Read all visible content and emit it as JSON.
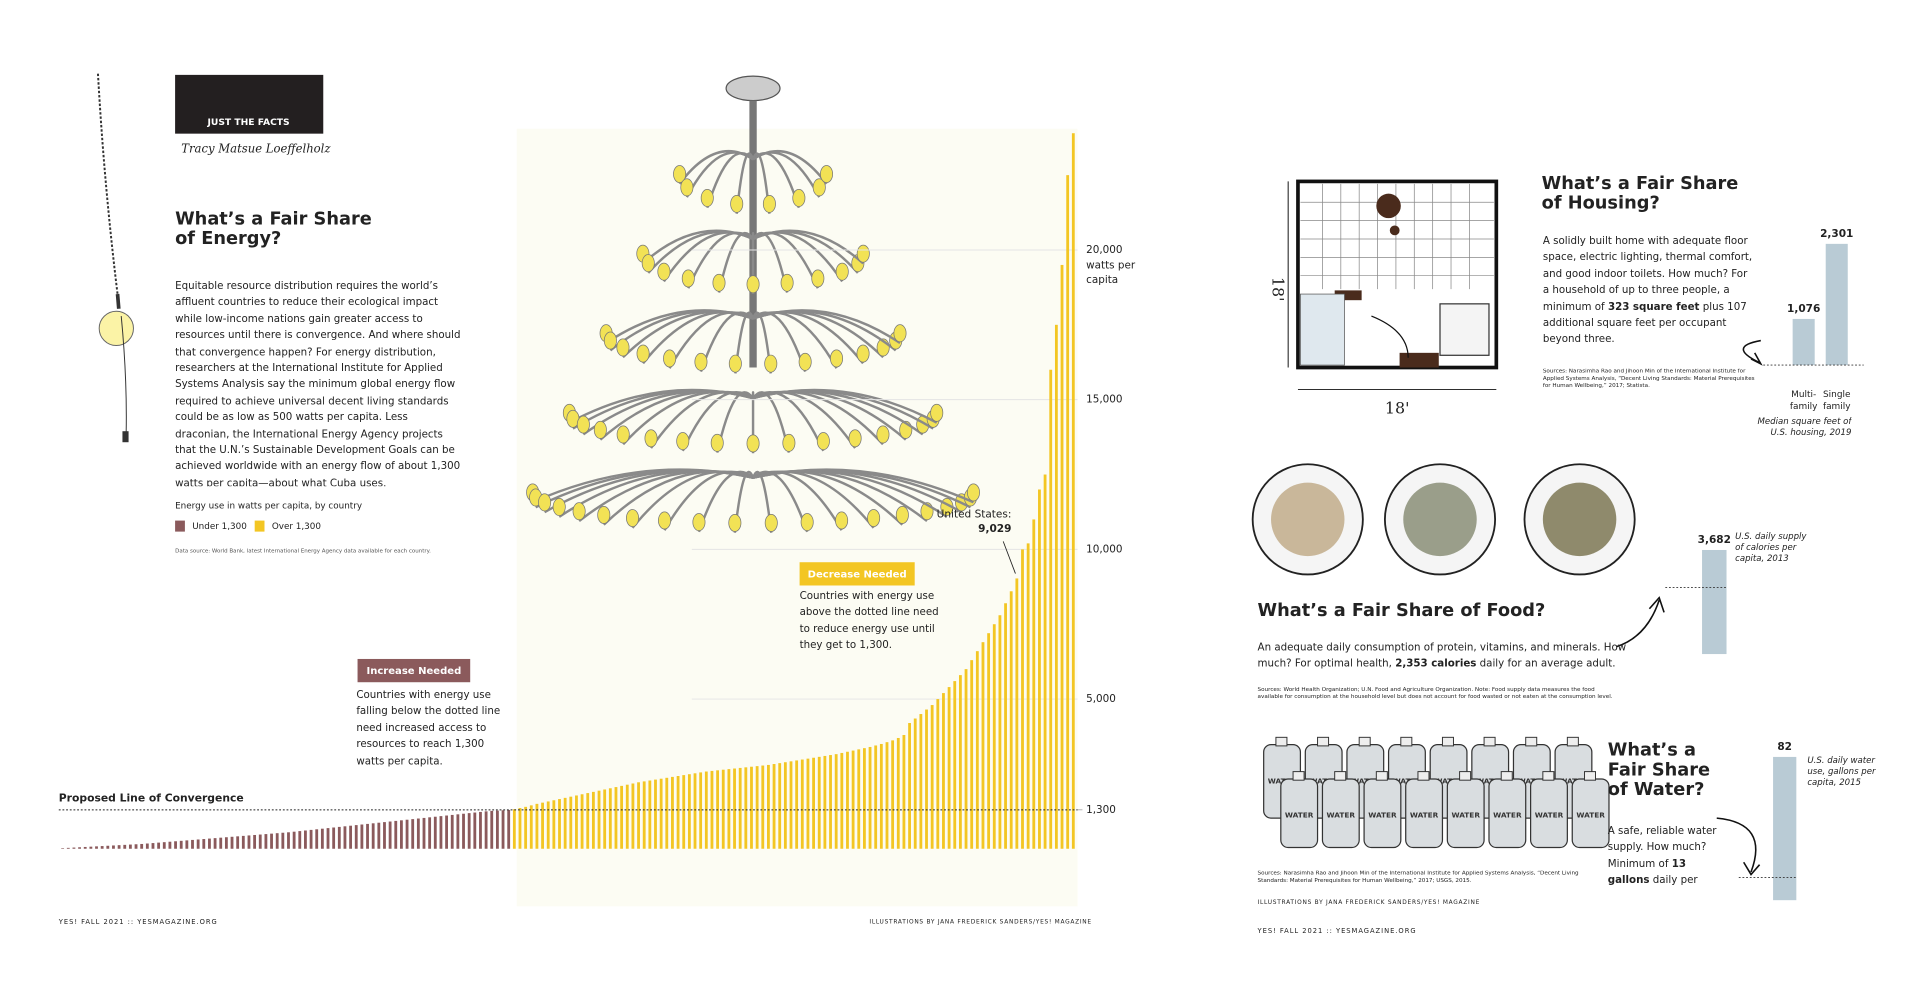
{
  "left_page": {
    "section": "JUST THE FACTS",
    "author": "Tracy Matsue Loeffelholz",
    "title": "What’s a Fair Share of Energy?",
    "body": "Equitable resource distribution requires the world’s affluent countries to reduce their ecological impact while low-income nations gain greater access to resources until there is convergence. And where should that convergence happen? For energy distribution, researchers at the International Institute for Applied Systems Analysis say the minimum global energy flow required to achieve universal decent living standards could be as low as 500 watts per capita. Less draconian, the International Energy Agency projects that the U.N.’s Sustainable Development Goals can be achieved worldwide with an energy flow of about 1,300 watts per capita—about what Cuba uses.",
    "footer": "YES! FALL 2021 :: YESMAGAZINE.ORG",
    "credit": "ILLUSTRATIONS BY JANA FREDERICK SANDERS/YES! MAGAZINE"
  },
  "chart_data": [
    {
      "type": "bar",
      "legend_title": "Energy use in watts per capita, by country",
      "series": [
        {
          "name": "Under 1,300",
          "color": "#8b5a5c",
          "values": [
            20,
            30,
            40,
            50,
            60,
            70,
            80,
            90,
            100,
            110,
            120,
            130,
            140,
            150,
            160,
            175,
            190,
            205,
            220,
            235,
            250,
            265,
            280,
            295,
            310,
            325,
            340,
            355,
            370,
            385,
            400,
            415,
            430,
            445,
            460,
            475,
            490,
            505,
            520,
            535,
            550,
            570,
            590,
            610,
            630,
            650,
            670,
            690,
            710,
            730,
            750,
            770,
            790,
            810,
            830,
            850,
            870,
            890,
            910,
            930,
            950,
            970,
            990,
            1010,
            1030,
            1050,
            1070,
            1090,
            1110,
            1130,
            1150,
            1170,
            1190,
            1210,
            1230,
            1250,
            1265,
            1275,
            1285,
            1295
          ]
        },
        {
          "name": "Over 1,300",
          "color": "#f3c623",
          "values": [
            1320,
            1360,
            1400,
            1450,
            1500,
            1540,
            1580,
            1620,
            1660,
            1700,
            1740,
            1780,
            1820,
            1860,
            1900,
            1940,
            1980,
            2020,
            2060,
            2100,
            2140,
            2180,
            2220,
            2250,
            2280,
            2310,
            2340,
            2370,
            2400,
            2430,
            2460,
            2490,
            2520,
            2550,
            2580,
            2600,
            2620,
            2640,
            2660,
            2680,
            2700,
            2720,
            2740,
            2760,
            2780,
            2800,
            2830,
            2860,
            2890,
            2920,
            2950,
            2980,
            3010,
            3040,
            3070,
            3100,
            3130,
            3160,
            3200,
            3240,
            3280,
            3320,
            3360,
            3400,
            3450,
            3500,
            3560,
            3620,
            3700,
            3800,
            4200,
            4350,
            4500,
            4650,
            4800,
            5000,
            5200,
            5400,
            5600,
            5800,
            6000,
            6300,
            6600,
            6900,
            7200,
            7500,
            7800,
            8200,
            8600,
            9029,
            10000,
            10200,
            11000,
            12000,
            12500,
            16000,
            17500,
            19500,
            22500,
            23900
          ],
          "value_labels": [
            null,
            null,
            null,
            null,
            null,
            null,
            null,
            null,
            null,
            null,
            null,
            null,
            null,
            null,
            null,
            null,
            null,
            null,
            null,
            null,
            null,
            null,
            null,
            null,
            null,
            null,
            null,
            null,
            null,
            null,
            null,
            null,
            null,
            null,
            null,
            null,
            null,
            null,
            null,
            null,
            null,
            null,
            null,
            null,
            null,
            null,
            null,
            null,
            null,
            null,
            null,
            null,
            null,
            null,
            null,
            null,
            null,
            null,
            null,
            null,
            null,
            null,
            null,
            null,
            null,
            null,
            null,
            null,
            null,
            null,
            null,
            null,
            null,
            null,
            null,
            null,
            null,
            null,
            null,
            null,
            null,
            null,
            null,
            null,
            null,
            null,
            null,
            null,
            null,
            "9,029",
            null,
            null,
            null,
            null,
            null,
            null,
            null,
            null,
            null,
            null
          ]
        }
      ],
      "highlight_label": "United States:",
      "ylim": [
        0,
        24000
      ],
      "yticks": [
        {
          "value": 1300,
          "label": "1,300"
        },
        {
          "value": 5000,
          "label": "5,000"
        },
        {
          "value": 10000,
          "label": "10,000"
        },
        {
          "value": 15000,
          "label": "15,000"
        },
        {
          "value": 20000,
          "label": "20,000"
        }
      ],
      "y_label": "watts per capita",
      "grid": true,
      "reference_line": {
        "value": 1300,
        "label": "Proposed Line of Convergence"
      },
      "annotations": [
        {
          "title": "Increase Needed",
          "text": "Countries with energy use falling below the dotted line need increased access to resources to reach 1,300 watts per capita."
        },
        {
          "title": "Decrease Needed",
          "text": "Countries with energy use above the dotted line need to reduce energy use until they get to 1,300."
        }
      ],
      "source": "Data source: World Bank, latest International Energy Agency data available for each country."
    },
    {
      "type": "bar",
      "categories": [
        "Multi-family",
        "Single family"
      ],
      "values": [
        1076,
        2301
      ],
      "value_labels": [
        "1,076",
        "2,301"
      ],
      "color": "#b9cbd5",
      "ylim": [
        323,
        2301
      ],
      "reference_line": 323,
      "caption": "Median square feet of U.S. housing, 2019"
    },
    {
      "type": "bar",
      "values": [
        3682
      ],
      "value_labels": [
        "3,682"
      ],
      "color": "#b9cbd5",
      "ylim": [
        0,
        3682
      ],
      "reference_line": 2353,
      "caption": "U.S. daily supply of calories per capita, 2013"
    },
    {
      "type": "bar",
      "values": [
        82
      ],
      "color": "#b9cbd5",
      "ylim": [
        0,
        82
      ],
      "reference_line": 13,
      "caption": "U.S. daily water use, gallons per capita, 2015"
    }
  ],
  "right_page": {
    "housing": {
      "title": "What’s a Fair Share of Housing?",
      "body_start": "A solidly built home with adequate floor space, electric lighting, thermal comfort, and good indoor toilets. How much? For a household of up to three people, a minimum of ",
      "body_bold": "323 square feet",
      "body_end": " plus 107 additional square feet per occupant beyond three.",
      "source": "Sources: Narasimha Rao and Jihoon Min of the International Institute for Applied Systems Analysis, “Decent Living Standards: Material Prerequisites for Human Wellbeing,” 2017; Statista.",
      "dimension": "18'"
    },
    "food": {
      "title": "What’s a Fair Share of Food?",
      "body_start": "An adequate daily consumption of protein, vitamins, and minerals. How much? For optimal health, ",
      "body_bold": "2,353 calories",
      "body_end": " daily for an average adult.",
      "source": "Sources: World Health Organization; U.N. Food and Agriculture Organization. Note: Food supply data measures the food available for consumption at the household level but does not account for food wasted or not eaten at the consumption level."
    },
    "water": {
      "title": "What’s a Fair Share of Water?",
      "body_start": "A safe, reliable water supply. How much? Minimum of ",
      "body_bold": "13 gallons",
      "body_end": " daily per capita.",
      "source": "Sources: Narasimha Rao and Jihoon Min of the International Institute for Applied Systems Analysis, “Decent Living Standards: Material Prerequisites for Human Wellbeing,” 2017; USGS, 2015.",
      "jug_label": "WATER"
    },
    "credit": "ILLUSTRATIONS BY JANA FREDERICK SANDERS/YES! MAGAZINE",
    "footer": "YES! FALL 2021 :: YESMAGAZINE.ORG"
  }
}
